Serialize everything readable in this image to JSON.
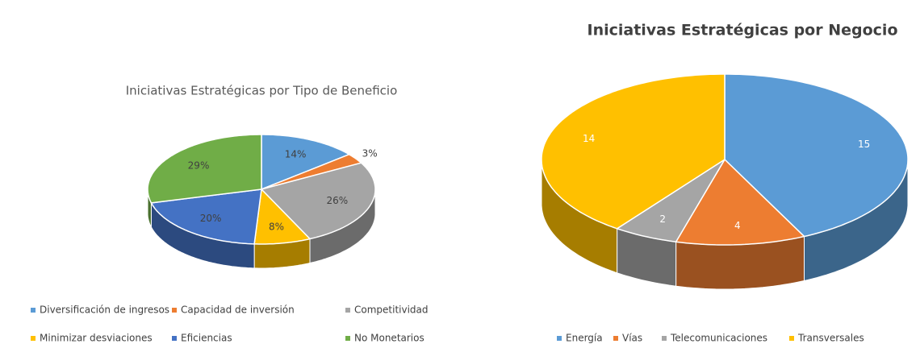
{
  "chart_data": [
    {
      "type": "pie",
      "title": "Iniciativas Estratégicas por Tipo de Beneficio",
      "categories": [
        "Diversificación de ingresos",
        "Capacidad de inversión",
        "Competitividad",
        "Minimizar desviaciones",
        "Eficiencias",
        "No Monetarios"
      ],
      "values": [
        14,
        3,
        26,
        8,
        20,
        29
      ],
      "value_labels": [
        "14%",
        "3%",
        "26%",
        "8%",
        "20%",
        "29%"
      ],
      "colors": [
        "#5b9bd5",
        "#ed7d31",
        "#a5a5a5",
        "#ffc000",
        "#4472c4",
        "#70ad47"
      ],
      "legend": "bottom"
    },
    {
      "type": "pie",
      "title": "Iniciativas Estratégicas por Negocio",
      "categories": [
        "Energía",
        "Vías",
        "Telecomunicaciones",
        "Transversales"
      ],
      "values": [
        15,
        4,
        2,
        14
      ],
      "colors": [
        "#5b9bd5",
        "#ed7d31",
        "#a5a5a5",
        "#ffc000"
      ],
      "legend": "bottom"
    }
  ]
}
